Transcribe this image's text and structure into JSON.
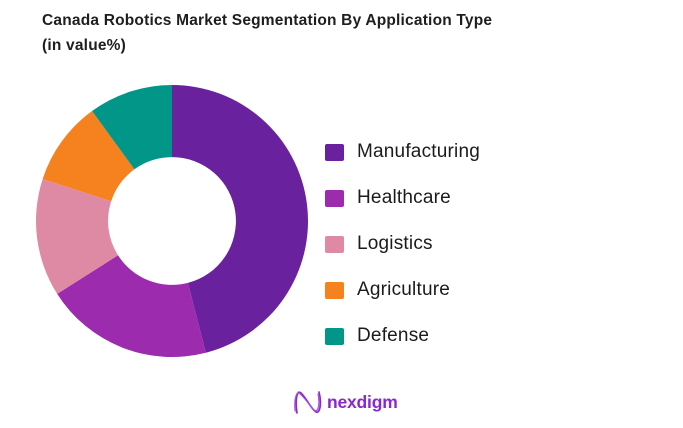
{
  "title": {
    "line1": "Canada Robotics  Market Segmentation By Application Type",
    "line2": "(in value%)"
  },
  "chart_data": {
    "type": "pie",
    "subtype": "donut",
    "title": "Canada Robotics Market Segmentation By Application Type (in value%)",
    "categories": [
      "Manufacturing",
      "Healthcare",
      "Logistics",
      "Agriculture",
      "Defense"
    ],
    "values": [
      46,
      20,
      14,
      10,
      10
    ],
    "unit": "value %",
    "colors": [
      "#6a219e",
      "#9c2bae",
      "#df8aa5",
      "#f5821e",
      "#019687"
    ],
    "start_angle_deg": 0,
    "direction": "clockwise",
    "inner_radius_ratio": 0.47,
    "legend_position": "right",
    "data_labels_visible": false
  },
  "footer": {
    "brand": "nexdigm",
    "brand_color": "#8a27ce"
  }
}
